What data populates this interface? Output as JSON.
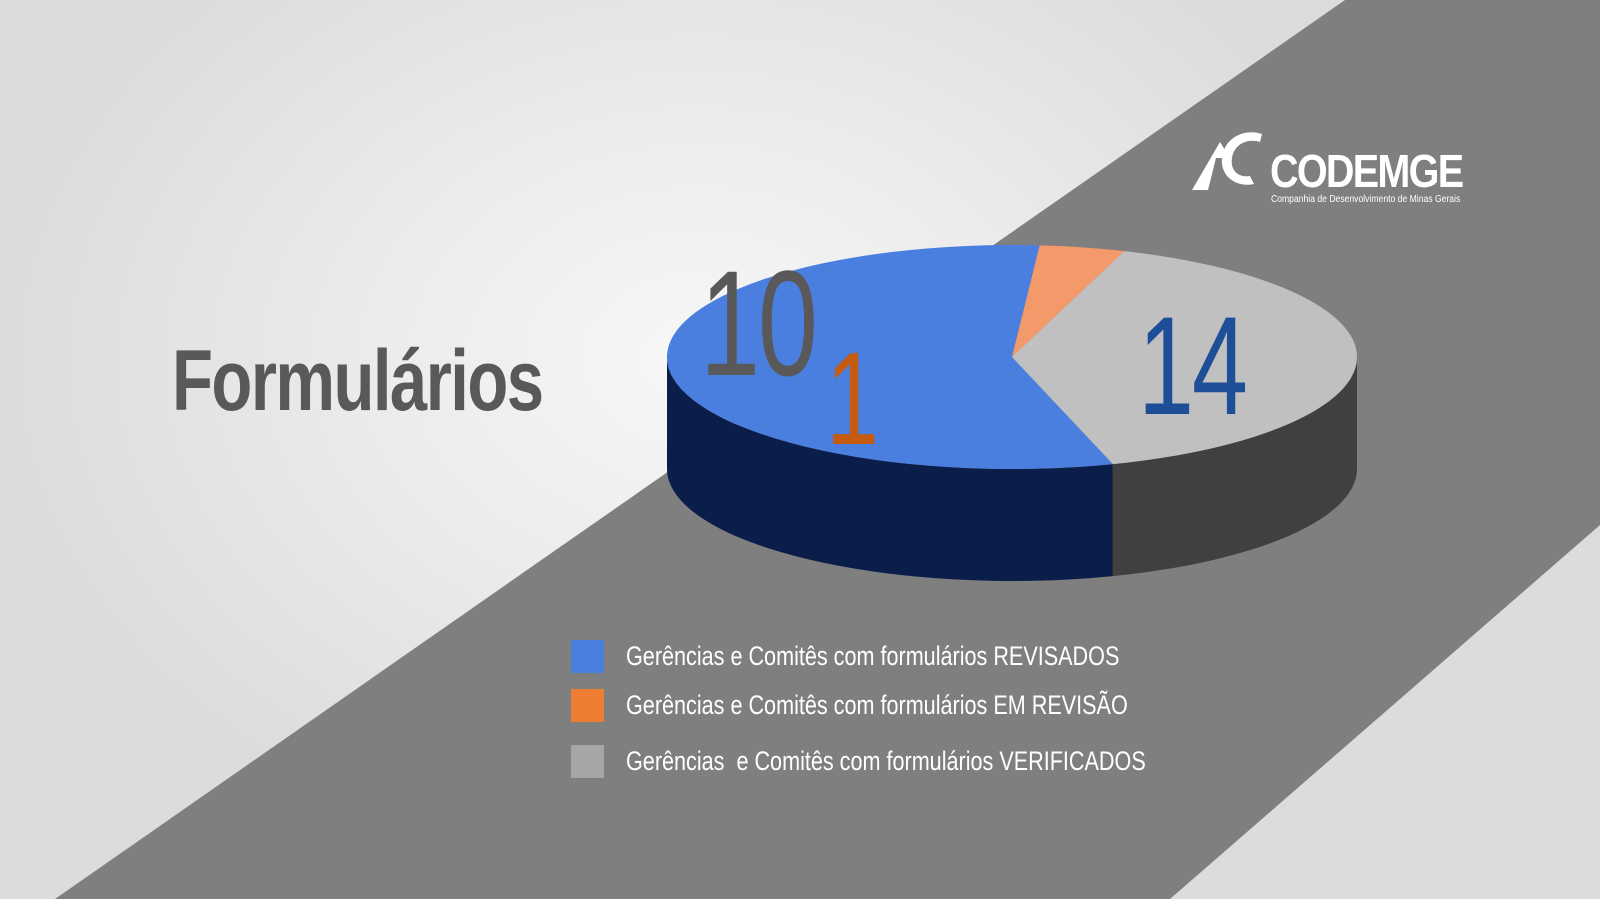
{
  "title": "Formulários",
  "logo": {
    "name": "CODEMGE",
    "tagline": "Companhia de Desenvolvimento de Minas Gerais"
  },
  "colors": {
    "revisados": "#4a7fe0",
    "em_revisao": "#ed7d31",
    "verificados": "#a6a6a6",
    "band": "#7f7f7f"
  },
  "chart_data": {
    "type": "pie",
    "style": "3d",
    "categories": [
      "Gerências e Comitês com formulários REVISADOS",
      "Gerências e Comitês com formulários EM REVISÃO",
      "Gerências  e Comitês com formulários VERIFICADOS"
    ],
    "values": [
      14,
      1,
      10
    ],
    "data_labels": [
      "14",
      "1",
      "10"
    ],
    "legend_position": "bottom"
  }
}
